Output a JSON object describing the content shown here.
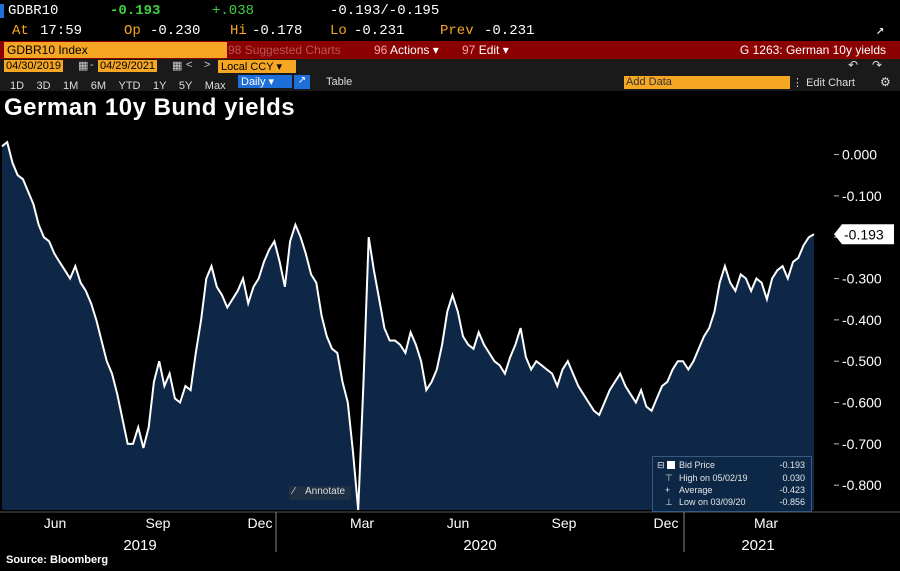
{
  "header": {
    "ticker": "GDBR10",
    "last": "-0.193",
    "change": "+.038",
    "bid_ask": "-0.193/-0.195",
    "time_label": "At",
    "time": "17:59",
    "open_label": "Op",
    "open": "-0.230",
    "high_label": "Hi",
    "high": "-0.178",
    "low_label": "Lo",
    "low": "-0.231",
    "prev_label": "Prev",
    "prev": "-0.231",
    "security": "GDBR10 Index",
    "suggested": "Suggested Charts",
    "actions_key": "96",
    "actions": "Actions",
    "edit_key": "97",
    "edit": "Edit",
    "chart_id": "G 1263: German 10y yields",
    "suggested_key": "98"
  },
  "toolbar": {
    "start_date": "04/30/2019",
    "end_date": "04/29/2021",
    "currency": "Local CCY",
    "ranges": [
      "1D",
      "3D",
      "1M",
      "6M",
      "YTD",
      "1Y",
      "5Y",
      "Max"
    ],
    "frequency": "Daily",
    "table": "Table",
    "add_data": "Add Data",
    "edit_chart": "Edit Chart"
  },
  "chart_title": "German 10y Bund yields",
  "source": "Source: Bloomberg",
  "annotate": "Annotate",
  "legend": {
    "bid_price_label": "Bid Price",
    "bid_price": "-0.193",
    "high_label": "High on 05/02/19",
    "high": "0.030",
    "average_label": "Average",
    "average": "-0.423",
    "low_label": "Low on 03/09/20",
    "low": "-0.856"
  },
  "chart_data": {
    "type": "area",
    "title": "German 10y Bund yields",
    "ylim": [
      -0.86,
      0.04
    ],
    "yticks": [
      "0.000",
      "-0.100",
      "-0.200",
      "-0.300",
      "-0.400",
      "-0.500",
      "-0.600",
      "-0.700",
      "-0.800"
    ],
    "xticks": [
      "Jun",
      "Sep",
      "Dec",
      "Mar",
      "Jun",
      "Sep",
      "Dec",
      "Mar"
    ],
    "years": [
      "2019",
      "2020",
      "2021"
    ],
    "last_value_label": "-0.193",
    "series": [
      {
        "values": [
          0.02,
          0.03,
          -0.02,
          -0.05,
          -0.06,
          -0.09,
          -0.12,
          -0.17,
          -0.2,
          -0.21,
          -0.24,
          -0.26,
          -0.28,
          -0.3,
          -0.27,
          -0.31,
          -0.33,
          -0.36,
          -0.4,
          -0.45,
          -0.5,
          -0.53,
          -0.58,
          -0.64,
          -0.7,
          -0.7,
          -0.66,
          -0.71,
          -0.66,
          -0.55,
          -0.5,
          -0.56,
          -0.53,
          -0.59,
          -0.6,
          -0.56,
          -0.57,
          -0.48,
          -0.4,
          -0.3,
          -0.27,
          -0.32,
          -0.34,
          -0.37,
          -0.35,
          -0.33,
          -0.3,
          -0.36,
          -0.32,
          -0.3,
          -0.26,
          -0.23,
          -0.21,
          -0.26,
          -0.32,
          -0.21,
          -0.17,
          -0.2,
          -0.24,
          -0.29,
          -0.31,
          -0.39,
          -0.44,
          -0.47,
          -0.48,
          -0.55,
          -0.6,
          -0.72,
          -0.86,
          -0.55,
          -0.2,
          -0.28,
          -0.35,
          -0.42,
          -0.45,
          -0.45,
          -0.46,
          -0.48,
          -0.43,
          -0.46,
          -0.5,
          -0.57,
          -0.55,
          -0.52,
          -0.46,
          -0.38,
          -0.34,
          -0.38,
          -0.44,
          -0.46,
          -0.47,
          -0.43,
          -0.46,
          -0.48,
          -0.5,
          -0.51,
          -0.53,
          -0.49,
          -0.46,
          -0.42,
          -0.49,
          -0.52,
          -0.5,
          -0.51,
          -0.52,
          -0.53,
          -0.56,
          -0.52,
          -0.5,
          -0.53,
          -0.56,
          -0.58,
          -0.6,
          -0.62,
          -0.63,
          -0.6,
          -0.57,
          -0.55,
          -0.53,
          -0.56,
          -0.58,
          -0.6,
          -0.57,
          -0.61,
          -0.62,
          -0.59,
          -0.56,
          -0.55,
          -0.52,
          -0.5,
          -0.5,
          -0.52,
          -0.5,
          -0.47,
          -0.44,
          -0.42,
          -0.38,
          -0.31,
          -0.27,
          -0.31,
          -0.33,
          -0.29,
          -0.3,
          -0.33,
          -0.3,
          -0.31,
          -0.35,
          -0.3,
          -0.28,
          -0.27,
          -0.3,
          -0.26,
          -0.25,
          -0.22,
          -0.2,
          -0.193
        ]
      }
    ]
  },
  "colors": {
    "accent": "#f5a623",
    "header_red": "#8b0000",
    "positive": "#3fd03f",
    "area_fill": "#0e2747",
    "line": "#ffffff"
  }
}
